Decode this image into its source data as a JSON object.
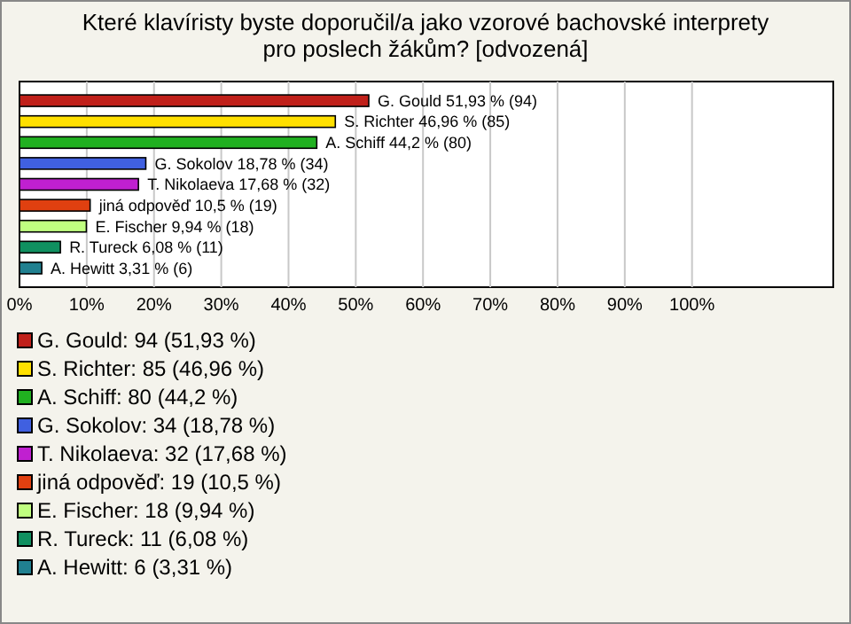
{
  "chart_data": {
    "type": "bar",
    "orientation": "horizontal",
    "title": "Které klavíristy byste doporučil/a jako vzorové bachovské interprety\npro poslech žákům? [odvozená]",
    "categories": [
      null,
      null,
      null,
      null,
      null,
      null,
      null,
      null,
      null
    ],
    "series": [
      {
        "name": "G. Gould: 94 (51,93 %)",
        "color": "#c0201a",
        "values": [
          51.93,
          null,
          null,
          null,
          null,
          null,
          null,
          null,
          null
        ],
        "value_labels": [
          "G. Gould 51,93 % (94)",
          null,
          null,
          null,
          null,
          null,
          null,
          null,
          null
        ]
      },
      {
        "name": "S. Richter: 85 (46,96 %)",
        "color": "#ffe000",
        "values": [
          null,
          46.96,
          null,
          null,
          null,
          null,
          null,
          null,
          null
        ],
        "value_labels": [
          null,
          "S. Richter 46,96 % (85)",
          null,
          null,
          null,
          null,
          null,
          null,
          null
        ]
      },
      {
        "name": "A. Schiff: 80 (44,2 %)",
        "color": "#20b020",
        "values": [
          null,
          null,
          44.2,
          null,
          null,
          null,
          null,
          null,
          null
        ],
        "value_labels": [
          null,
          null,
          "A. Schiff 44,2 % (80)",
          null,
          null,
          null,
          null,
          null,
          null
        ]
      },
      {
        "name": "G. Sokolov: 34 (18,78 %)",
        "color": "#4060e0",
        "values": [
          null,
          null,
          null,
          18.78,
          null,
          null,
          null,
          null,
          null
        ],
        "value_labels": [
          null,
          null,
          null,
          "G. Sokolov 18,78 % (34)",
          null,
          null,
          null,
          null,
          null
        ]
      },
      {
        "name": "T. Nikolaeva: 32 (17,68 %)",
        "color": "#c020d0",
        "values": [
          null,
          null,
          null,
          null,
          17.68,
          null,
          null,
          null,
          null
        ],
        "value_labels": [
          null,
          null,
          null,
          null,
          "T. Nikolaeva 17,68 % (32)",
          null,
          null,
          null,
          null
        ]
      },
      {
        "name": "jiná odpověď: 19 (10,5 %)",
        "color": "#e04010",
        "values": [
          null,
          null,
          null,
          null,
          null,
          10.5,
          null,
          null,
          null
        ],
        "value_labels": [
          null,
          null,
          null,
          null,
          null,
          "jiná odpověď 10,5 % (19)",
          null,
          null,
          null
        ]
      },
      {
        "name": "E. Fischer: 18 (9,94 %)",
        "color": "#c0ff80",
        "values": [
          null,
          null,
          null,
          null,
          null,
          null,
          9.94,
          null,
          null
        ],
        "value_labels": [
          null,
          null,
          null,
          null,
          null,
          null,
          "E. Fischer 9,94 % (18)",
          null,
          null
        ]
      },
      {
        "name": "R. Tureck: 11 (6,08 %)",
        "color": "#109060",
        "values": [
          null,
          null,
          null,
          null,
          null,
          null,
          null,
          6.08,
          null
        ],
        "value_labels": [
          null,
          null,
          null,
          null,
          null,
          null,
          null,
          "R. Tureck 6,08 % (11)",
          null
        ]
      },
      {
        "name": "A. Hewitt: 6 (3,31 %)",
        "color": "#208090",
        "values": [
          null,
          null,
          null,
          null,
          null,
          null,
          null,
          null,
          3.31
        ],
        "value_labels": [
          null,
          null,
          null,
          null,
          null,
          null,
          null,
          null,
          "A. Hewitt 3,31 % (6)"
        ]
      }
    ],
    "xlim": [
      0,
      121
    ],
    "xticks": [
      {
        "value": 0,
        "label": "0%"
      },
      {
        "value": 10,
        "label": "10%"
      },
      {
        "value": 20,
        "label": "20%"
      },
      {
        "value": 30,
        "label": "30%"
      },
      {
        "value": 40,
        "label": "40%"
      },
      {
        "value": 50,
        "label": "50%"
      },
      {
        "value": 60,
        "label": "60%"
      },
      {
        "value": 70,
        "label": "70%"
      },
      {
        "value": 80,
        "label": "80%"
      },
      {
        "value": 90,
        "label": "90%"
      },
      {
        "value": 100,
        "label": "100%"
      }
    ],
    "grid": "x",
    "legend": "bottom"
  }
}
